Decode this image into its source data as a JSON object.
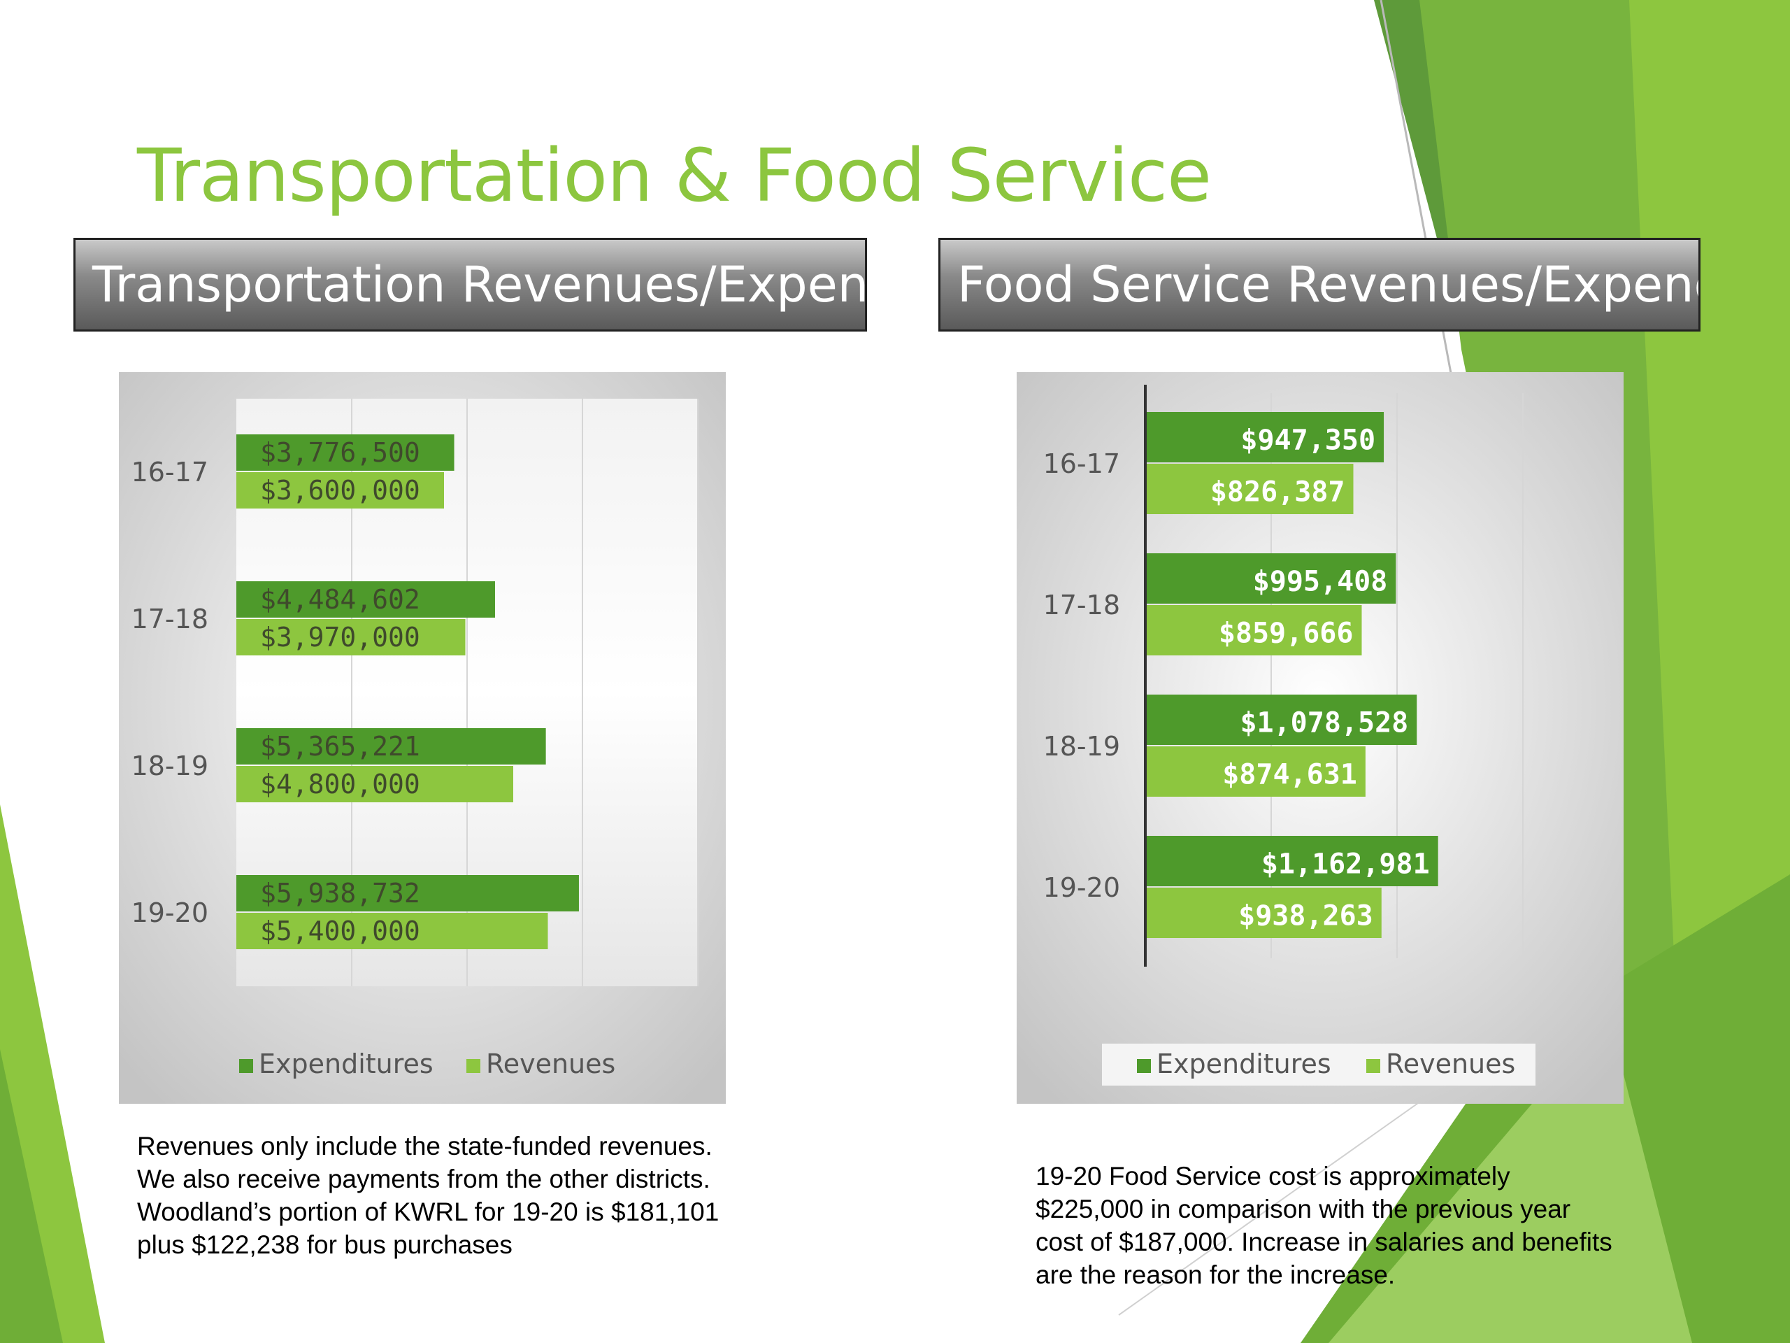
{
  "slide": {
    "title": "Transportation & Food Service"
  },
  "headers": {
    "left": "Transportation Revenues/Expend",
    "right": "Food Service Revenues/Expend"
  },
  "notes": {
    "left": "Revenues only include the state-funded revenues.  We also receive payments from the other districts.  Woodland’s portion of KWRL for 19-20 is $181,101 plus $122,238 for bus purchases",
    "right": "19-20 Food Service cost is approximately $225,000 in comparison with the previous year cost of $187,000.  Increase in salaries and benefits are the reason for the increase."
  },
  "colors": {
    "accent": "#8CC63F",
    "expenditures": "#4E9A2B",
    "revenues": "#8DC63F"
  },
  "chart_data": [
    {
      "type": "bar",
      "orientation": "horizontal",
      "title": "Transportation Revenues/Expend",
      "categories": [
        "16-17",
        "17-18",
        "18-19",
        "19-20"
      ],
      "series": [
        {
          "name": "Expenditures",
          "values": [
            3776500,
            4484602,
            5365221,
            5938732
          ],
          "labels": [
            "$3,776,500",
            "$4,484,602",
            "$5,365,221",
            "$5,938,732"
          ]
        },
        {
          "name": "Revenues",
          "values": [
            3600000,
            3970000,
            4800000,
            5400000
          ],
          "labels": [
            "$3,600,000",
            "$3,970,000",
            "$4,800,000",
            "$5,400,000"
          ]
        }
      ],
      "xlim": [
        0,
        8000000
      ],
      "grid": true,
      "legend": "bottom"
    },
    {
      "type": "bar",
      "orientation": "horizontal",
      "title": "Food Service Revenues/Expend",
      "categories": [
        "16-17",
        "17-18",
        "18-19",
        "19-20"
      ],
      "series": [
        {
          "name": "Expenditures",
          "values": [
            947350,
            995408,
            1078528,
            1162981
          ],
          "labels": [
            "$947,350",
            "$995,408",
            "$1,078,528",
            "$1,162,981"
          ]
        },
        {
          "name": "Revenues",
          "values": [
            826387,
            859666,
            874631,
            938263
          ],
          "labels": [
            "$826,387",
            "$859,666",
            "$874,631",
            "$938,263"
          ]
        }
      ],
      "xlim": [
        0,
        1500000
      ],
      "grid": true,
      "legend": "bottom"
    }
  ]
}
